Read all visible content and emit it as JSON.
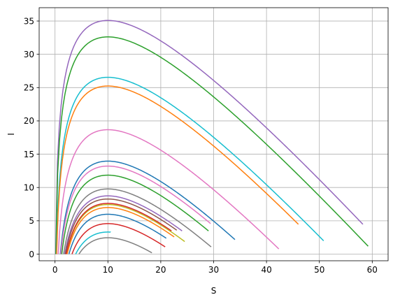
{
  "chart_data": {
    "type": "line",
    "title": "",
    "xlabel": "S",
    "ylabel": "I",
    "xlim": [
      -3,
      63
    ],
    "ylim": [
      -1,
      37
    ],
    "xticks": [
      0,
      10,
      20,
      30,
      40,
      50,
      60
    ],
    "yticks": [
      0,
      5,
      10,
      15,
      20,
      25,
      30,
      35
    ],
    "xtick_labels": [
      "0",
      "10",
      "20",
      "30",
      "40",
      "50",
      "60"
    ],
    "ytick_labels": [
      "0",
      "5",
      "10",
      "15",
      "20",
      "25",
      "30",
      "35"
    ],
    "grid": true,
    "legend": "none",
    "model": "I = S0 + I0 - S + 10*ln(S/S0)",
    "series": [
      {
        "color": "#9467bd",
        "S0": 58.2,
        "I0": 4.5
      },
      {
        "color": "#2ca02c",
        "S0": 59.2,
        "I0": 1.2
      },
      {
        "color": "#17becf",
        "S0": 50.8,
        "I0": 2.0
      },
      {
        "color": "#ff7f0e",
        "S0": 46.0,
        "I0": 4.5
      },
      {
        "color": "#e377c2",
        "S0": 42.3,
        "I0": 0.8
      },
      {
        "color": "#1f77b4",
        "S0": 34.0,
        "I0": 2.2
      },
      {
        "color": "#e377c2",
        "S0": 29.4,
        "I0": 4.6
      },
      {
        "color": "#2ca02c",
        "S0": 29.0,
        "I0": 3.5
      },
      {
        "color": "#7f7f7f",
        "S0": 29.5,
        "I0": 1.1
      },
      {
        "color": "#9467bd",
        "S0": 24.0,
        "I0": 3.5
      },
      {
        "color": "#bcbd22",
        "S0": 24.5,
        "I0": 1.9
      },
      {
        "color": "#8c564b",
        "S0": 23.0,
        "I0": 3.6
      },
      {
        "color": "#d62728",
        "S0": 22.0,
        "I0": 3.5
      },
      {
        "color": "#ff7f0e",
        "S0": 22.5,
        "I0": 2.6
      },
      {
        "color": "#1f77b4",
        "S0": 21.0,
        "I0": 2.4
      },
      {
        "color": "#d62728",
        "S0": 20.8,
        "I0": 1.1
      },
      {
        "color": "#7f7f7f",
        "S0": 18.3,
        "I0": 0.2
      },
      {
        "color": "#17becf",
        "S0": 10.5,
        "I0": 3.3
      }
    ]
  }
}
